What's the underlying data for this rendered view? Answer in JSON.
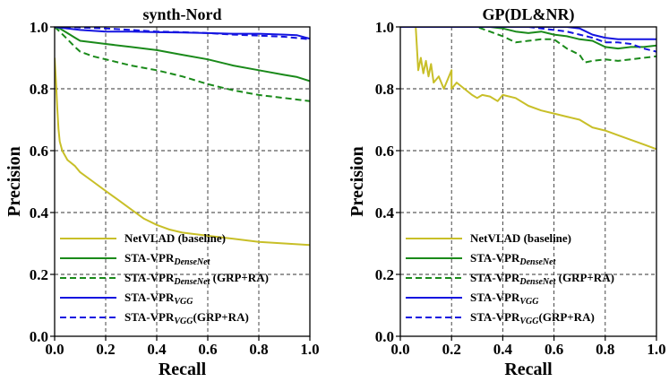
{
  "chart_data": [
    {
      "type": "line",
      "title": "synth-Nord",
      "xlabel": "Recall",
      "ylabel": "Precision",
      "xlim": [
        0,
        1
      ],
      "ylim": [
        0,
        1
      ],
      "xticks": [
        "0.0",
        "0.2",
        "0.4",
        "0.6",
        "0.8",
        "1.0"
      ],
      "yticks": [
        "0.0",
        "0.2",
        "0.4",
        "0.6",
        "0.8",
        "1.0"
      ],
      "grid": true,
      "legend_position": "bottom-left",
      "series": [
        {
          "name": "NetVLAD (baseline)",
          "label_main": "NetVLAD (baseline)",
          "label_sub": "",
          "label_suffix": "",
          "color": "#c8bf28",
          "dash": "solid",
          "x": [
            0,
            0.005,
            0.01,
            0.015,
            0.02,
            0.03,
            0.05,
            0.08,
            0.1,
            0.15,
            0.2,
            0.25,
            0.3,
            0.35,
            0.4,
            0.45,
            0.5,
            0.6,
            0.7,
            0.8,
            0.9,
            1.0
          ],
          "y": [
            0.9,
            0.83,
            0.74,
            0.67,
            0.63,
            0.6,
            0.57,
            0.55,
            0.53,
            0.5,
            0.47,
            0.44,
            0.41,
            0.38,
            0.36,
            0.345,
            0.335,
            0.325,
            0.315,
            0.305,
            0.3,
            0.295
          ]
        },
        {
          "name": "STA-VPR DenseNet",
          "label_main": "STA-VPR",
          "label_sub": "DenseNet",
          "label_suffix": "",
          "color": "#1a8a1a",
          "dash": "solid",
          "x": [
            0,
            0.02,
            0.05,
            0.08,
            0.1,
            0.15,
            0.2,
            0.3,
            0.4,
            0.5,
            0.6,
            0.7,
            0.8,
            0.9,
            0.95,
            1.0
          ],
          "y": [
            1.0,
            0.995,
            0.98,
            0.965,
            0.955,
            0.95,
            0.945,
            0.935,
            0.925,
            0.91,
            0.895,
            0.875,
            0.86,
            0.845,
            0.838,
            0.825
          ]
        },
        {
          "name": "STA-VPR DenseNet (GRP+RA)",
          "label_main": "STA-VPR",
          "label_sub": "DenseNet",
          "label_suffix": " (GRP+RA)",
          "color": "#1a8a1a",
          "dash": "dashed",
          "x": [
            0,
            0.02,
            0.05,
            0.08,
            0.1,
            0.15,
            0.2,
            0.3,
            0.4,
            0.5,
            0.6,
            0.7,
            0.8,
            0.9,
            1.0
          ],
          "y": [
            1.0,
            0.985,
            0.96,
            0.935,
            0.92,
            0.905,
            0.895,
            0.875,
            0.86,
            0.84,
            0.815,
            0.795,
            0.78,
            0.77,
            0.76
          ]
        },
        {
          "name": "STA-VPR VGG",
          "label_main": "STA-VPR",
          "label_sub": "VGG",
          "label_suffix": "",
          "color": "#1414e0",
          "dash": "solid",
          "x": [
            0,
            0.05,
            0.1,
            0.2,
            0.3,
            0.4,
            0.5,
            0.6,
            0.7,
            0.8,
            0.9,
            0.95,
            1.0
          ],
          "y": [
            1.0,
            0.995,
            0.99,
            0.985,
            0.985,
            0.983,
            0.982,
            0.98,
            0.978,
            0.978,
            0.975,
            0.973,
            0.962
          ]
        },
        {
          "name": "STA-VPR VGG (GRP+RA)",
          "label_main": "STA-VPR",
          "label_sub": "VGG",
          "label_suffix": "(GRP+RA)",
          "color": "#1414e0",
          "dash": "dashed",
          "x": [
            0,
            0.05,
            0.1,
            0.2,
            0.3,
            0.4,
            0.5,
            0.6,
            0.7,
            0.8,
            0.9,
            1.0
          ],
          "y": [
            1.0,
            1.0,
            0.998,
            0.995,
            0.99,
            0.985,
            0.983,
            0.98,
            0.975,
            0.972,
            0.968,
            0.96
          ]
        }
      ]
    },
    {
      "type": "line",
      "title": "GP(DL&NR)",
      "xlabel": "Recall",
      "ylabel": "Precision",
      "xlim": [
        0,
        1
      ],
      "ylim": [
        0,
        1
      ],
      "xticks": [
        "0.0",
        "0.2",
        "0.4",
        "0.6",
        "0.8",
        "1.0"
      ],
      "yticks": [
        "0.0",
        "0.2",
        "0.4",
        "0.6",
        "0.8",
        "1.0"
      ],
      "grid": true,
      "legend_position": "bottom-left",
      "series": [
        {
          "name": "NetVLAD (baseline)",
          "label_main": "NetVLAD (baseline)",
          "label_sub": "",
          "label_suffix": "",
          "color": "#c8bf28",
          "dash": "solid",
          "x": [
            0,
            0.06,
            0.07,
            0.08,
            0.09,
            0.1,
            0.11,
            0.12,
            0.13,
            0.15,
            0.17,
            0.2,
            0.2,
            0.22,
            0.25,
            0.28,
            0.3,
            0.32,
            0.35,
            0.38,
            0.4,
            0.45,
            0.5,
            0.55,
            0.6,
            0.65,
            0.7,
            0.75,
            0.8,
            0.85,
            0.9,
            0.95,
            1.0
          ],
          "y": [
            1.0,
            1.0,
            0.86,
            0.9,
            0.85,
            0.89,
            0.84,
            0.88,
            0.82,
            0.84,
            0.8,
            0.86,
            0.8,
            0.82,
            0.8,
            0.78,
            0.77,
            0.78,
            0.775,
            0.76,
            0.78,
            0.77,
            0.745,
            0.73,
            0.72,
            0.71,
            0.7,
            0.675,
            0.665,
            0.65,
            0.635,
            0.62,
            0.605
          ]
        },
        {
          "name": "STA-VPR DenseNet",
          "label_main": "STA-VPR",
          "label_sub": "DenseNet",
          "label_suffix": "",
          "color": "#1a8a1a",
          "dash": "solid",
          "x": [
            0,
            0.3,
            0.35,
            0.4,
            0.45,
            0.5,
            0.55,
            0.6,
            0.65,
            0.7,
            0.75,
            0.8,
            0.85,
            0.9,
            0.95,
            1.0
          ],
          "y": [
            1.0,
            1.0,
            1.0,
            0.995,
            0.985,
            0.98,
            0.985,
            0.975,
            0.97,
            0.96,
            0.955,
            0.935,
            0.93,
            0.935,
            0.935,
            0.94
          ]
        },
        {
          "name": "STA-VPR DenseNet (GRP+RA)",
          "label_main": "STA-VPR",
          "label_sub": "DenseNet",
          "label_suffix": " (GRP+RA)",
          "color": "#1a8a1a",
          "dash": "dashed",
          "x": [
            0,
            0.3,
            0.35,
            0.4,
            0.45,
            0.5,
            0.55,
            0.6,
            0.65,
            0.7,
            0.72,
            0.75,
            0.8,
            0.85,
            0.9,
            0.95,
            1.0
          ],
          "y": [
            1.0,
            1.0,
            0.985,
            0.97,
            0.95,
            0.955,
            0.96,
            0.96,
            0.93,
            0.91,
            0.885,
            0.89,
            0.895,
            0.89,
            0.895,
            0.9,
            0.905
          ]
        },
        {
          "name": "STA-VPR VGG",
          "label_main": "STA-VPR",
          "label_sub": "VGG",
          "label_suffix": "",
          "color": "#1414e0",
          "dash": "solid",
          "x": [
            0,
            0.5,
            0.6,
            0.65,
            0.7,
            0.75,
            0.8,
            0.85,
            0.9,
            0.95,
            1.0
          ],
          "y": [
            1.0,
            1.0,
            1.0,
            1.0,
            0.995,
            0.975,
            0.965,
            0.96,
            0.96,
            0.96,
            0.96
          ]
        },
        {
          "name": "STA-VPR VGG (GRP+RA)",
          "label_main": "STA-VPR",
          "label_sub": "VGG",
          "label_suffix": "(GRP+RA)",
          "color": "#1414e0",
          "dash": "dashed",
          "x": [
            0,
            0.5,
            0.55,
            0.6,
            0.65,
            0.7,
            0.75,
            0.8,
            0.85,
            0.9,
            0.95,
            1.0
          ],
          "y": [
            1.0,
            1.0,
            0.995,
            0.99,
            0.985,
            0.975,
            0.965,
            0.95,
            0.95,
            0.945,
            0.93,
            0.92
          ]
        }
      ]
    }
  ]
}
